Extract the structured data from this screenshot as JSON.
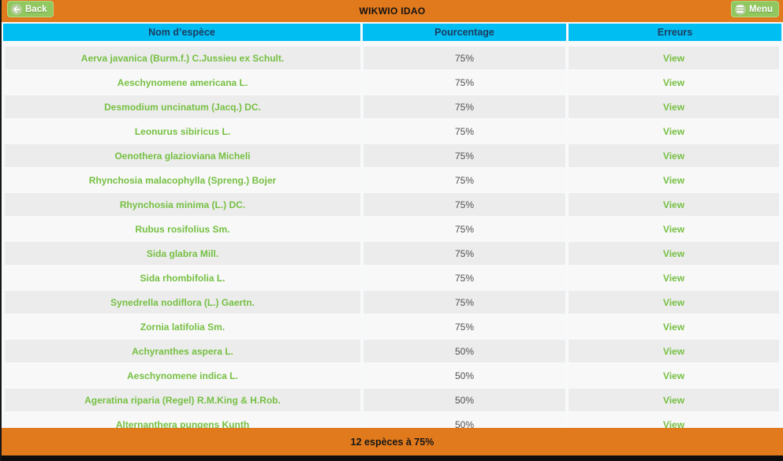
{
  "header": {
    "back_label": "Back",
    "title": "WIKWIO IDAO",
    "menu_label": "Menu"
  },
  "table": {
    "columns": [
      "Nom d’espèce",
      "Pourcentage",
      "Erreurs"
    ],
    "rows": [
      {
        "species": "Aerva javanica (Burm.f.) C.Jussieu ex Schult.",
        "percentage": "75%",
        "action": "View"
      },
      {
        "species": "Aeschynomene americana L.",
        "percentage": "75%",
        "action": "View"
      },
      {
        "species": "Desmodium uncinatum (Jacq.) DC.",
        "percentage": "75%",
        "action": "View"
      },
      {
        "species": "Leonurus sibiricus L.",
        "percentage": "75%",
        "action": "View"
      },
      {
        "species": "Oenothera glazioviana Micheli",
        "percentage": "75%",
        "action": "View"
      },
      {
        "species": "Rhynchosia malacophylla (Spreng.) Bojer",
        "percentage": "75%",
        "action": "View"
      },
      {
        "species": "Rhynchosia minima (L.) DC.",
        "percentage": "75%",
        "action": "View"
      },
      {
        "species": "Rubus rosifolius Sm.",
        "percentage": "75%",
        "action": "View"
      },
      {
        "species": "Sida glabra Mill.",
        "percentage": "75%",
        "action": "View"
      },
      {
        "species": "Sida rhombifolia L.",
        "percentage": "75%",
        "action": "View"
      },
      {
        "species": "Synedrella nodiflora (L.) Gaertn.",
        "percentage": "75%",
        "action": "View"
      },
      {
        "species": "Zornia latifolia Sm.",
        "percentage": "75%",
        "action": "View"
      },
      {
        "species": "Achyranthes aspera L.",
        "percentage": "50%",
        "action": "View"
      },
      {
        "species": "Aeschynomene indica L.",
        "percentage": "50%",
        "action": "View"
      },
      {
        "species": "Ageratina riparia (Regel) R.M.King & H.Rob.",
        "percentage": "50%",
        "action": "View"
      },
      {
        "species": "Alternanthera pungens Kunth",
        "percentage": "50%",
        "action": "View"
      }
    ]
  },
  "footer": {
    "summary": "12 espèces à 75%"
  },
  "colors": {
    "accent_orange": "#e1791d",
    "accent_cyan": "#00bdf2",
    "button_green": "#90c75f",
    "link_green": "#76c043",
    "header_text_navy": "#1c3d60"
  },
  "icons": {
    "back": "arrow-left-icon",
    "menu": "hamburger-icon"
  }
}
